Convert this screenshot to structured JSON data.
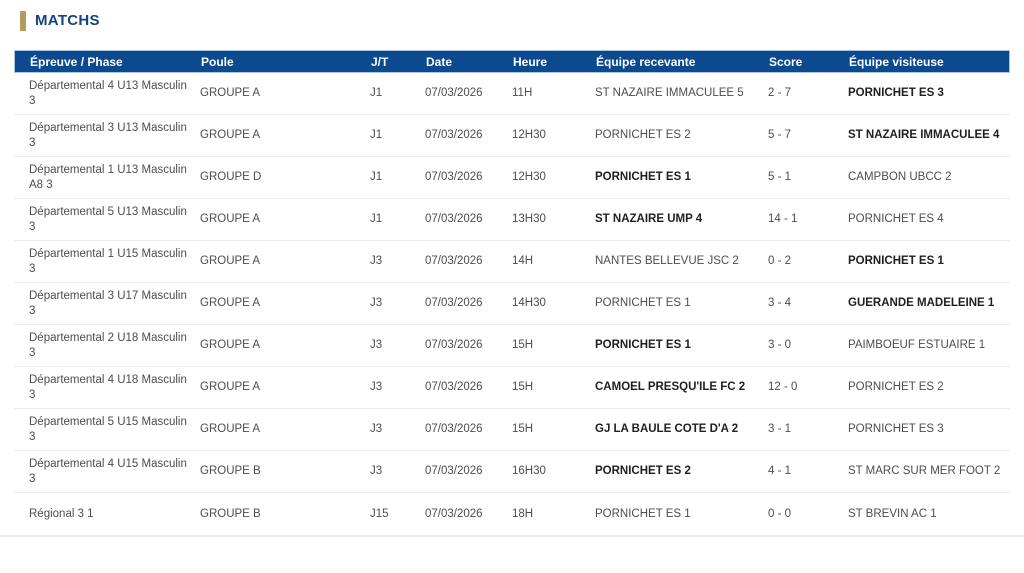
{
  "title": "MATCHS",
  "colors": {
    "header_blue": "#0c4a90",
    "title_blue": "#15447e",
    "gold_accent": "#b49a5b"
  },
  "table": {
    "columns": [
      "Épreuve / Phase",
      "Poule",
      "J/T",
      "Date",
      "Heure",
      "Équipe recevante",
      "Score",
      "Équipe visiteuse"
    ],
    "rows": [
      {
        "epreuve": "Départemental 4 U13 Masculin 3",
        "poule": "GROUPE A",
        "jt": "J1",
        "date": "07/03/2026",
        "heure": "11H",
        "home": "ST NAZAIRE IMMACULEE 5",
        "score": "2 - 7",
        "away": "PORNICHET ES 3",
        "home_bold": false,
        "away_bold": true
      },
      {
        "epreuve": "Départemental 3 U13 Masculin 3",
        "poule": "GROUPE A",
        "jt": "J1",
        "date": "07/03/2026",
        "heure": "12H30",
        "home": "PORNICHET ES 2",
        "score": "5 - 7",
        "away": "ST NAZAIRE IMMACULEE 4",
        "home_bold": false,
        "away_bold": true
      },
      {
        "epreuve": "Départemental 1 U13 Masculin A8 3",
        "poule": "GROUPE D",
        "jt": "J1",
        "date": "07/03/2026",
        "heure": "12H30",
        "home": "PORNICHET ES 1",
        "score": "5 - 1",
        "away": "CAMPBON UBCC 2",
        "home_bold": true,
        "away_bold": false
      },
      {
        "epreuve": "Départemental 5 U13 Masculin 3",
        "poule": "GROUPE A",
        "jt": "J1",
        "date": "07/03/2026",
        "heure": "13H30",
        "home": "ST NAZAIRE UMP 4",
        "score": "14 - 1",
        "away": "PORNICHET ES 4",
        "home_bold": true,
        "away_bold": false
      },
      {
        "epreuve": "Départemental 1 U15 Masculin 3",
        "poule": "GROUPE A",
        "jt": "J3",
        "date": "07/03/2026",
        "heure": "14H",
        "home": "NANTES BELLEVUE JSC 2",
        "score": "0 - 2",
        "away": "PORNICHET ES 1",
        "home_bold": false,
        "away_bold": true
      },
      {
        "epreuve": "Départemental 3 U17 Masculin 3",
        "poule": "GROUPE A",
        "jt": "J3",
        "date": "07/03/2026",
        "heure": "14H30",
        "home": "PORNICHET ES 1",
        "score": "3 - 4",
        "away": "GUERANDE MADELEINE 1",
        "home_bold": false,
        "away_bold": true
      },
      {
        "epreuve": "Départemental 2 U18 Masculin 3",
        "poule": "GROUPE A",
        "jt": "J3",
        "date": "07/03/2026",
        "heure": "15H",
        "home": "PORNICHET ES 1",
        "score": "3 - 0",
        "away": "PAIMBOEUF ESTUAIRE 1",
        "home_bold": true,
        "away_bold": false
      },
      {
        "epreuve": "Départemental 4 U18 Masculin 3",
        "poule": "GROUPE A",
        "jt": "J3",
        "date": "07/03/2026",
        "heure": "15H",
        "home": "CAMOEL PRESQU'ILE FC 2",
        "score": "12 - 0",
        "away": "PORNICHET ES 2",
        "home_bold": true,
        "away_bold": false
      },
      {
        "epreuve": "Départemental 5 U15 Masculin 3",
        "poule": "GROUPE A",
        "jt": "J3",
        "date": "07/03/2026",
        "heure": "15H",
        "home": "GJ LA BAULE COTE D'A 2",
        "score": "3 - 1",
        "away": "PORNICHET ES 3",
        "home_bold": true,
        "away_bold": false
      },
      {
        "epreuve": "Départemental 4 U15 Masculin 3",
        "poule": "GROUPE B",
        "jt": "J3",
        "date": "07/03/2026",
        "heure": "16H30",
        "home": "PORNICHET ES 2",
        "score": "4 - 1",
        "away": "ST MARC SUR MER FOOT 2",
        "home_bold": true,
        "away_bold": false
      },
      {
        "epreuve": "Régional 3 1",
        "poule": "GROUPE B",
        "jt": "J15",
        "date": "07/03/2026",
        "heure": "18H",
        "home": "PORNICHET ES 1",
        "score": "0 - 0",
        "away": "ST BREVIN AC 1",
        "home_bold": false,
        "away_bold": false
      }
    ]
  }
}
